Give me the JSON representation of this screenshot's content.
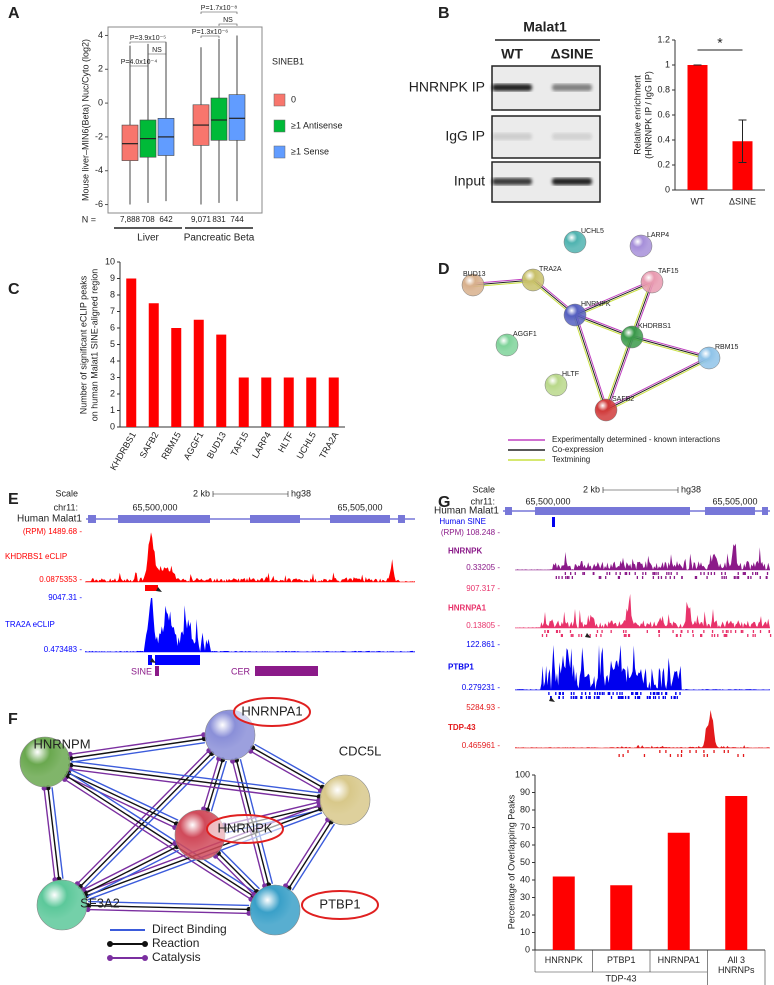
{
  "panel_labels": [
    "A",
    "B",
    "C",
    "D",
    "E",
    "F",
    "G"
  ],
  "chart_data": [
    {
      "type": "box",
      "y_label": "Mouse liver–MIN6(Beta) Nuc/Cyto (log2)",
      "categories": [
        "Liver",
        "Pancreatic Beta"
      ],
      "legend_title": "SINEB1",
      "n_prefix": "N =",
      "ylim": [
        -6.5,
        4.5
      ],
      "yticks": [
        -6,
        -4,
        -2,
        0,
        2,
        4
      ],
      "series": [
        {
          "name": "0",
          "color": "#f8766d",
          "low": [
            -6,
            -6
          ],
          "q1": [
            -3.4,
            -2.5
          ],
          "median": [
            -2.4,
            -1.3
          ],
          "q3": [
            -1.3,
            -0.1
          ],
          "high": [
            3.4,
            3.3
          ],
          "n_labels": [
            "7,888",
            "9,071"
          ]
        },
        {
          "name": "≥1 Antisense",
          "color": "#00ba38",
          "low": [
            -5.9,
            -5.9
          ],
          "q1": [
            -3.2,
            -2.2
          ],
          "median": [
            -2.1,
            -1.0
          ],
          "q3": [
            -1.0,
            0.3
          ],
          "high": [
            3.5,
            3.8
          ],
          "n_labels": [
            "708",
            "831"
          ]
        },
        {
          "name": "≥1 Sense",
          "color": "#619cff",
          "low": [
            -5.8,
            -5.8
          ],
          "q1": [
            -3.1,
            -2.2
          ],
          "median": [
            -2.0,
            -0.9
          ],
          "q3": [
            -0.9,
            0.5
          ],
          "high": [
            3.6,
            4.0
          ],
          "n_labels": [
            "642",
            "744"
          ]
        }
      ],
      "annotations": [
        [
          "P=3.9x10⁻⁵",
          "NS",
          "P=4.0x10⁻⁴"
        ],
        [
          "P=1.7x10⁻⁸",
          "NS",
          "P=1.3x10⁻⁶"
        ]
      ]
    },
    {
      "type": "bar",
      "categories": [
        "WT",
        "ΔSINE"
      ],
      "values": [
        1,
        0.39
      ],
      "errors": [
        0,
        0.17
      ],
      "color": "#ff0000",
      "ylim": [
        0,
        1.2
      ],
      "yticks": [
        0,
        0.2,
        0.4,
        0.6,
        0.8,
        1,
        1.2
      ],
      "y_label": [
        "Relative enrichment",
        "(HNRNPK IP / IgG IP)"
      ],
      "annotation": "*"
    },
    {
      "type": "bar",
      "categories": [
        "KHDRBS1",
        "SAFB2",
        "RBM15",
        "AGGF1",
        "BUD13",
        "TAF15",
        "LARP4",
        "HLTF",
        "UCHL5",
        "TRA2A"
      ],
      "values": [
        9,
        7.5,
        6,
        6.5,
        5.6,
        3,
        3,
        3,
        3,
        3
      ],
      "color": "#ff0000",
      "ylim": [
        0,
        10
      ],
      "yticks": [
        0,
        1,
        2,
        3,
        4,
        5,
        6,
        7,
        8,
        9,
        10
      ],
      "y_label": [
        "Number of significant eCLIP peaks",
        "on human Malat1 SINE-aligned region"
      ]
    },
    {
      "type": "bar",
      "categories": [
        "HNRNPK",
        "PTBP1",
        "HNRNPA1",
        "All 3 HNRNPs"
      ],
      "values": [
        42,
        37,
        67,
        88
      ],
      "color": "#ff0000",
      "ylim": [
        0,
        100
      ],
      "yticks": [
        0,
        10,
        20,
        30,
        40,
        50,
        60,
        70,
        80,
        90,
        100
      ],
      "y_label": "Percentage of Overlapping Peaks",
      "group_label": "TDP-43"
    }
  ],
  "gel": {
    "title": "Malat1",
    "lanes": [
      "WT",
      "ΔSINE"
    ],
    "rows": [
      "HNRNPK IP",
      "IgG IP",
      "Input"
    ]
  },
  "network_d": {
    "nodes": [
      {
        "label": "UCHL5",
        "color": "#4fb3b0"
      },
      {
        "label": "LARP4",
        "color": "#a68fd9"
      },
      {
        "label": "BUD13",
        "color": "#d8b08c"
      },
      {
        "label": "TRA2A",
        "color": "#c8c06a"
      },
      {
        "label": "TAF15",
        "color": "#e89ab0"
      },
      {
        "label": "HNRNPK",
        "color": "#5560c0"
      },
      {
        "label": "AGGF1",
        "color": "#7fd39a"
      },
      {
        "label": "KHDRBS1",
        "color": "#3a9a4a"
      },
      {
        "label": "RBM15",
        "color": "#8fc3e8"
      },
      {
        "label": "HLTF",
        "color": "#b9d88a"
      },
      {
        "label": "SAFB2",
        "color": "#d03a3a"
      }
    ],
    "legend": [
      {
        "label": "Experimentally determined - known interactions",
        "color": "#c040c0"
      },
      {
        "label": "Co-expression",
        "color": "#222222"
      },
      {
        "label": "Textmining",
        "color": "#c8e040"
      }
    ]
  },
  "track_e": {
    "scale": "Scale",
    "scale_bar": "2 kb",
    "assembly": "hg38",
    "chrom": "chr11:",
    "positions": [
      "65,500,000",
      "65,505,000"
    ],
    "gene": "Human Malat1",
    "tracks": [
      {
        "name": "KHDRBS1 eCLIP",
        "max": "(RPM) 1489.68 -",
        "min": "0.0875353 -",
        "color": "#ff0000"
      },
      {
        "name": "TRA2A eCLIP",
        "max": "9047.31 -",
        "min": "0.473483 -",
        "color": "#0000ff"
      }
    ],
    "features": [
      "SINE",
      "CER"
    ]
  },
  "network_f": {
    "nodes": [
      {
        "label": "HNRNPA1",
        "color": "#8a8fd8",
        "circled": true
      },
      {
        "label": "HNRNPM",
        "color": "#6aa84f",
        "circled": false
      },
      {
        "label": "CDC5L",
        "color": "#d8c88a",
        "circled": false
      },
      {
        "label": "HNRNPK",
        "color": "#d04a5a",
        "circled": true
      },
      {
        "label": "SF3A2",
        "color": "#5cc89a",
        "circled": false
      },
      {
        "label": "PTBP1",
        "color": "#3aa0c8",
        "circled": true
      }
    ],
    "legend": [
      {
        "label": "Direct Binding",
        "color": "#3b5bdb"
      },
      {
        "label": "Reaction",
        "color": "#111111"
      },
      {
        "label": "Catalysis",
        "color": "#7b2fa0"
      }
    ]
  },
  "track_g": {
    "scale": "Scale",
    "scale_bar": "2 kb",
    "assembly": "hg38",
    "chrom": "chr11:",
    "positions": [
      "65,500,000",
      "65,505,000"
    ],
    "gene": "Human Malat1",
    "sine": "Human SINE",
    "tracks": [
      {
        "name": "HNRNPK",
        "max": "(RPM) 108.248 -",
        "min": "0.33205 -",
        "color": "#8b1a89"
      },
      {
        "name": "HNRNPA1",
        "max": "907.317 -",
        "min": "0.13805 -",
        "color": "#e8336b"
      },
      {
        "name": "PTBP1",
        "max": "122.861 -",
        "min": "0.279231 -",
        "color": "#0000ee"
      },
      {
        "name": "TDP-43",
        "max": "5284.93 -",
        "min": "0.465961 -",
        "color": "#e31a1c"
      }
    ]
  }
}
